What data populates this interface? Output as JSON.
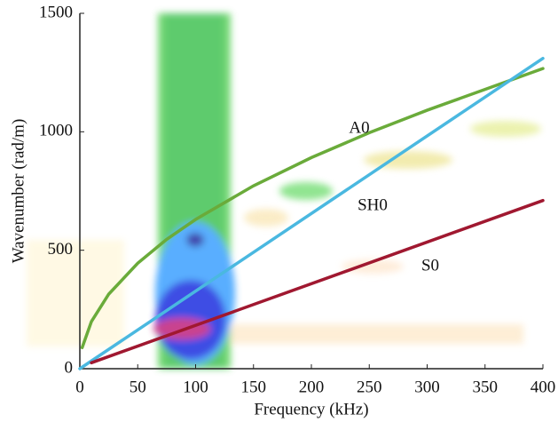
{
  "chart_data": {
    "type": "line",
    "xlabel": "Frequency (kHz)",
    "ylabel": "Wavenumber (rad/m)",
    "xlim": [
      0,
      400
    ],
    "xticks": [
      0,
      50,
      100,
      150,
      200,
      250,
      300,
      350,
      400
    ],
    "ylim": [
      0,
      1500
    ],
    "yticks": [
      0,
      500,
      1000,
      1500
    ],
    "grid": false,
    "series": [
      {
        "name": "A0",
        "color": "#6aab3a",
        "x": [
          2,
          10,
          25,
          50,
          75,
          100,
          150,
          200,
          250,
          300,
          350,
          400
        ],
        "values": [
          89,
          199,
          315,
          445,
          546,
          630,
          772,
          891,
          996,
          1091,
          1179,
          1267
        ]
      },
      {
        "name": "SH0",
        "color": "#4ab8e0",
        "x": [
          0,
          400
        ],
        "values": [
          0,
          1310
        ]
      },
      {
        "name": "S0",
        "color": "#a01830",
        "x": [
          10,
          400
        ],
        "values": [
          25,
          710
        ]
      }
    ]
  }
}
